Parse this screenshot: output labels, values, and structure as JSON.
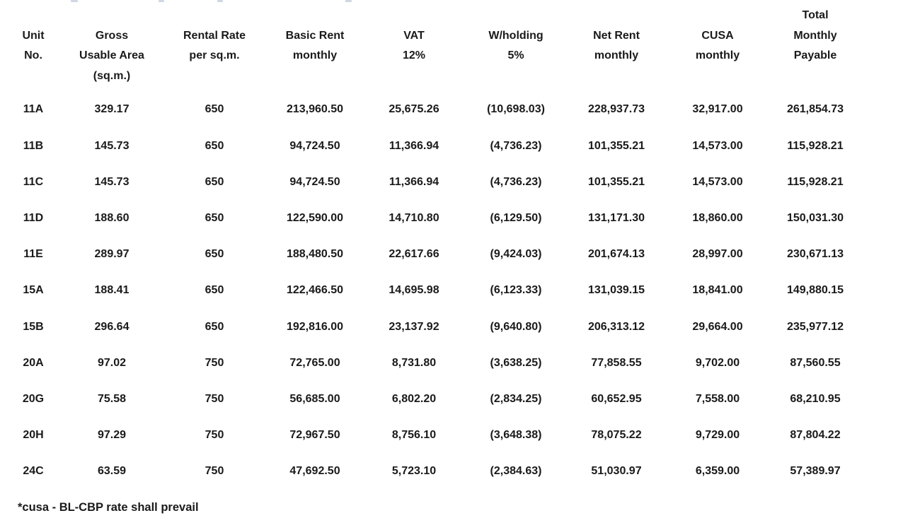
{
  "table": {
    "columns": [
      {
        "id": "unit",
        "label_lines": [
          "Unit",
          "No."
        ]
      },
      {
        "id": "area",
        "label_lines": [
          "Gross",
          "Usable Area",
          "(sq.m.)"
        ]
      },
      {
        "id": "rate",
        "label_lines": [
          "Rental Rate",
          "per sq.m."
        ]
      },
      {
        "id": "basic",
        "label_lines": [
          "Basic Rent",
          "monthly"
        ]
      },
      {
        "id": "vat",
        "label_lines": [
          "VAT",
          "12%"
        ]
      },
      {
        "id": "wht",
        "label_lines": [
          "W/holding",
          "5%"
        ]
      },
      {
        "id": "net",
        "label_lines": [
          "Net Rent",
          "monthly"
        ]
      },
      {
        "id": "cusa",
        "label_lines": [
          "CUSA",
          "monthly"
        ]
      },
      {
        "id": "total",
        "label_lines": [
          "Total",
          "Monthly",
          "Payable"
        ]
      }
    ],
    "rows": [
      [
        "11A",
        "329.17",
        "650",
        "213,960.50",
        "25,675.26",
        "(10,698.03)",
        "228,937.73",
        "32,917.00",
        "261,854.73"
      ],
      [
        "11B",
        "145.73",
        "650",
        "94,724.50",
        "11,366.94",
        "(4,736.23)",
        "101,355.21",
        "14,573.00",
        "115,928.21"
      ],
      [
        "11C",
        "145.73",
        "650",
        "94,724.50",
        "11,366.94",
        "(4,736.23)",
        "101,355.21",
        "14,573.00",
        "115,928.21"
      ],
      [
        "11D",
        "188.60",
        "650",
        "122,590.00",
        "14,710.80",
        "(6,129.50)",
        "131,171.30",
        "18,860.00",
        "150,031.30"
      ],
      [
        "11E",
        "289.97",
        "650",
        "188,480.50",
        "22,617.66",
        "(9,424.03)",
        "201,674.13",
        "28,997.00",
        "230,671.13"
      ],
      [
        "15A",
        "188.41",
        "650",
        "122,466.50",
        "14,695.98",
        "(6,123.33)",
        "131,039.15",
        "18,841.00",
        "149,880.15"
      ],
      [
        "15B",
        "296.64",
        "650",
        "192,816.00",
        "23,137.92",
        "(9,640.80)",
        "206,313.12",
        "29,664.00",
        "235,977.12"
      ],
      [
        "20A",
        "97.02",
        "750",
        "72,765.00",
        "8,731.80",
        "(3,638.25)",
        "77,858.55",
        "9,702.00",
        "87,560.55"
      ],
      [
        "20G",
        "75.58",
        "750",
        "56,685.00",
        "6,802.20",
        "(2,834.25)",
        "60,652.95",
        "7,558.00",
        "68,210.95"
      ],
      [
        "20H",
        "97.29",
        "750",
        "72,967.50",
        "8,756.10",
        "(3,648.38)",
        "78,075.22",
        "9,729.00",
        "87,804.22"
      ],
      [
        "24C",
        "63.59",
        "750",
        "47,692.50",
        "5,723.10",
        "(2,384.63)",
        "51,030.97",
        "6,359.00",
        "57,389.97"
      ]
    ],
    "footnote": "*cusa - BL-CBP rate shall prevail"
  },
  "colors": {
    "text": "#1a1a1a",
    "background": "#ffffff"
  }
}
